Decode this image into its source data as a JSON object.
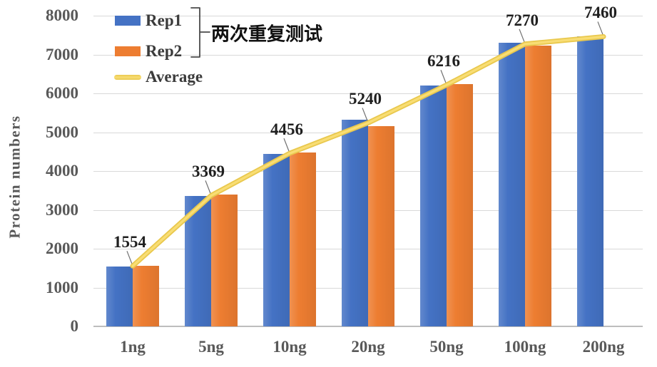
{
  "chart_data": {
    "type": "bar",
    "title": "",
    "categories": [
      "1ng",
      "5ng",
      "10ng",
      "20ng",
      "50ng",
      "100ng",
      "200ng"
    ],
    "series": [
      {
        "name": "Rep1",
        "color": "#4472C4",
        "values": [
          1540,
          3350,
          4440,
          5330,
          6200,
          7310,
          7460
        ]
      },
      {
        "name": "Rep2",
        "color": "#ED7D31",
        "values": [
          1568,
          3388,
          4472,
          5150,
          6232,
          7230,
          null
        ]
      }
    ],
    "average_line": {
      "name": "Average",
      "color": "#E9C84D",
      "inner_color": "#F8DD74",
      "values": [
        1554,
        3369,
        4456,
        5240,
        6216,
        7270,
        7460
      ]
    },
    "data_labels": [
      "1554",
      "3369",
      "4456",
      "5240",
      "6216",
      "7270",
      "7460"
    ],
    "xlabel": "",
    "ylabel": "Protein numbers",
    "ylim": [
      0,
      8000
    ],
    "ytick_interval": 1000,
    "grid": true,
    "legend": {
      "position": "top-left",
      "annotation": "两次重复测试"
    }
  },
  "colors": {
    "background": "#FFFFFF",
    "grid": "#D9D9D9",
    "baseline": "#BDBDBD",
    "axis_text": "#595959",
    "data_label_text": "#1F1F1F",
    "legend_text": "#3B3B3B",
    "leader_line": "#707070",
    "bracket": "#4A4A4A"
  }
}
